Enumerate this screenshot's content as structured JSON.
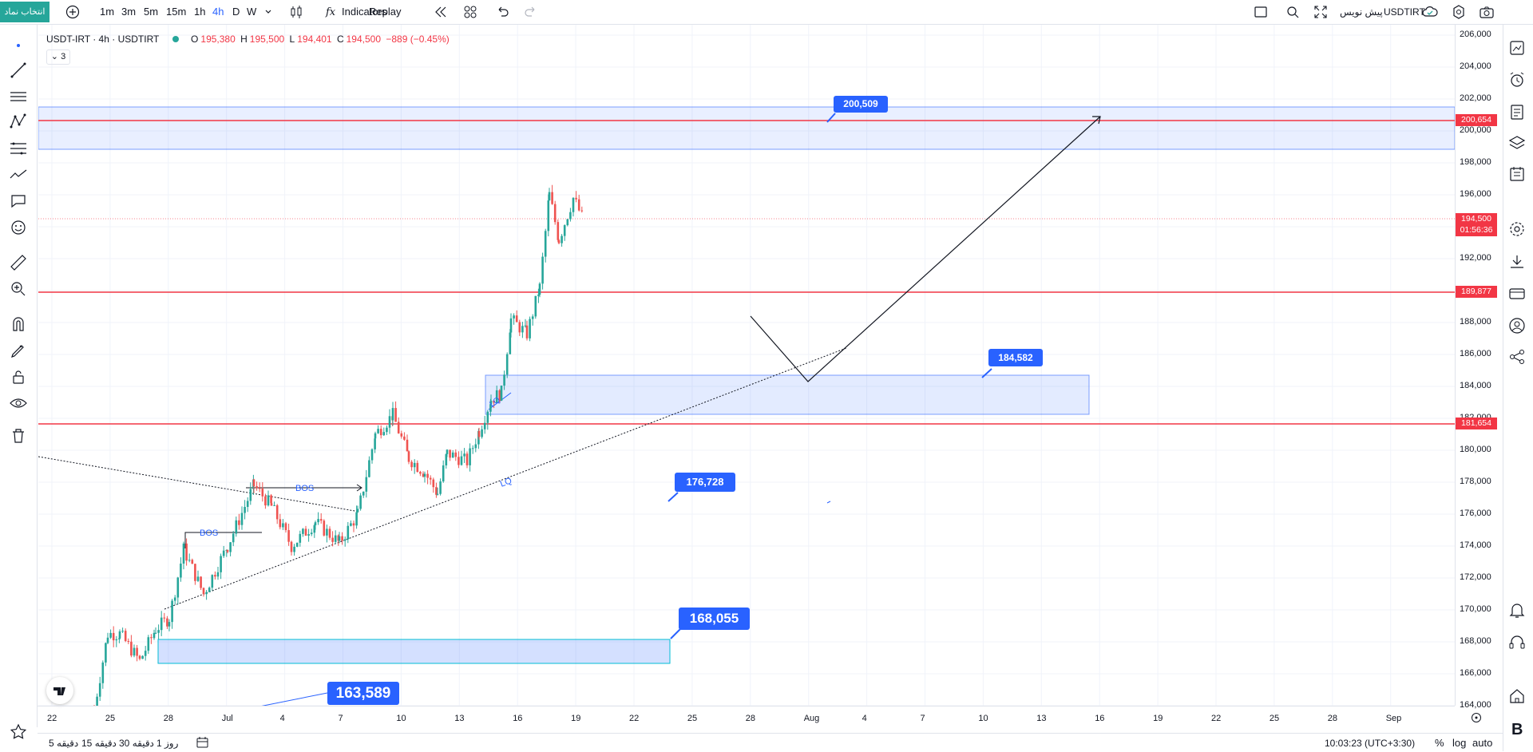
{
  "topbar": {
    "symbol_select_label": "انتخاب نماد",
    "intervals": [
      "1m",
      "3m",
      "5m",
      "15m",
      "1h",
      "4h",
      "D",
      "W"
    ],
    "active_interval": "4h",
    "indicators_label": "Indicators",
    "replay_label": "Replay",
    "draft_label": "پیش نویس",
    "symbol_name": "USDTIRT"
  },
  "legend": {
    "title": "USDT-IRT · 4h · USDTIRT",
    "o_label": "O",
    "o_value": "195,380",
    "h_label": "H",
    "h_value": "195,500",
    "l_label": "L",
    "l_value": "194,401",
    "c_label": "C",
    "c_value": "194,500",
    "change": "−889 (−0.45%)",
    "collapse_count": "3"
  },
  "chart_data": {
    "type": "candlestick",
    "symbol": "USDTIRT",
    "interval": "4h",
    "price_ticks": [
      "206,000",
      "204,000",
      "202,000",
      "200,000",
      "198,000",
      "196,000",
      "194,000",
      "192,000",
      "190,000",
      "188,000",
      "186,000",
      "184,000",
      "182,000",
      "180,000",
      "178,000",
      "176,000",
      "174,000",
      "172,000",
      "170,000",
      "168,000",
      "166,000",
      "164,000"
    ],
    "time_ticks": [
      "22",
      "25",
      "28",
      "Jul",
      "4",
      "7",
      "10",
      "13",
      "16",
      "19",
      "22",
      "25",
      "28",
      "Aug",
      "4",
      "7",
      "10",
      "13",
      "16",
      "19",
      "22",
      "25",
      "28",
      "Sep"
    ],
    "horizontal_lines": [
      {
        "price": "200,654",
        "color": "#f23645"
      },
      {
        "price": "189,877",
        "color": "#f23645"
      },
      {
        "price": "181,654",
        "color": "#f23645"
      }
    ],
    "current_price": "194,500",
    "countdown": "01:56:36",
    "callouts": [
      {
        "text": "200,509"
      },
      {
        "text": "184,582"
      },
      {
        "text": "176,728"
      },
      {
        "text": "168,055"
      },
      {
        "text": "163,589"
      }
    ],
    "annotations": [
      "BOS",
      "BOS",
      "LQ",
      "LQ"
    ]
  },
  "bottombar": {
    "ranges": [
      "5 دقیقه",
      "15 دقیقه",
      "30 دقیقه",
      "1 روز"
    ],
    "clock": "10:03:23 (UTC+3:30)",
    "percent_label": "%",
    "log_label": "log",
    "auto_label": "auto"
  },
  "colors": {
    "red": "#f23645",
    "blue": "#2962ff",
    "zone": "#c8d9f8",
    "green": "#26a69a"
  }
}
